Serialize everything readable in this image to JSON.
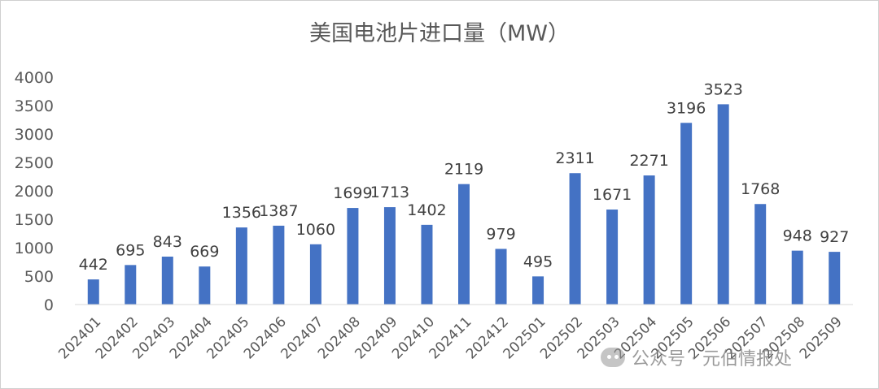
{
  "watermark": {
    "text": "公众号 · 元伯情报处",
    "icon": "wechat-icon"
  },
  "chart_data": {
    "type": "bar",
    "title": "美国电池片进口量（MW）",
    "xlabel": "",
    "ylabel": "",
    "ylim": [
      0,
      4000
    ],
    "yticks": [
      0,
      500,
      1000,
      1500,
      2000,
      2500,
      3000,
      3500,
      4000
    ],
    "grid": false,
    "legend": "none",
    "color": "#4472C4",
    "categories": [
      "202401",
      "202402",
      "202403",
      "202404",
      "202405",
      "202406",
      "202407",
      "202408",
      "202409",
      "202410",
      "202411",
      "202412",
      "202501",
      "202502",
      "202503",
      "202504",
      "202505",
      "202506",
      "202507",
      "202508",
      "202509"
    ],
    "values": [
      442,
      695,
      843,
      669,
      1356,
      1387,
      1060,
      1699,
      1713,
      1402,
      2119,
      979,
      495,
      2311,
      1671,
      2271,
      3196,
      3523,
      1768,
      948,
      927
    ]
  }
}
